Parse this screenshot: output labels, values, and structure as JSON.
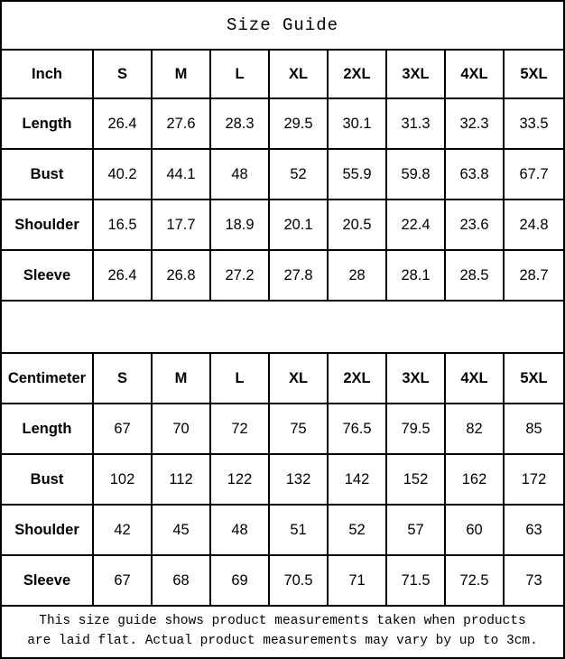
{
  "title": "Size Guide",
  "colors": {
    "border": "#000000",
    "text": "#000000",
    "background": "#ffffff"
  },
  "tables": [
    {
      "unit": "Inch",
      "sizes": [
        "S",
        "M",
        "L",
        "XL",
        "2XL",
        "3XL",
        "4XL",
        "5XL"
      ],
      "rows": [
        {
          "label": "Length",
          "values": [
            "26.4",
            "27.6",
            "28.3",
            "29.5",
            "30.1",
            "31.3",
            "32.3",
            "33.5"
          ]
        },
        {
          "label": "Bust",
          "values": [
            "40.2",
            "44.1",
            "48",
            "52",
            "55.9",
            "59.8",
            "63.8",
            "67.7"
          ]
        },
        {
          "label": "Shoulder",
          "values": [
            "16.5",
            "17.7",
            "18.9",
            "20.1",
            "20.5",
            "22.4",
            "23.6",
            "24.8"
          ]
        },
        {
          "label": "Sleeve",
          "values": [
            "26.4",
            "26.8",
            "27.2",
            "27.8",
            "28",
            "28.1",
            "28.5",
            "28.7"
          ]
        }
      ]
    },
    {
      "unit": "Centimeter",
      "sizes": [
        "S",
        "M",
        "L",
        "XL",
        "2XL",
        "3XL",
        "4XL",
        "5XL"
      ],
      "rows": [
        {
          "label": "Length",
          "values": [
            "67",
            "70",
            "72",
            "75",
            "76.5",
            "79.5",
            "82",
            "85"
          ]
        },
        {
          "label": "Bust",
          "values": [
            "102",
            "112",
            "122",
            "132",
            "142",
            "152",
            "162",
            "172"
          ]
        },
        {
          "label": "Shoulder",
          "values": [
            "42",
            "45",
            "48",
            "51",
            "52",
            "57",
            "60",
            "63"
          ]
        },
        {
          "label": "Sleeve",
          "values": [
            "67",
            "68",
            "69",
            "70.5",
            "71",
            "71.5",
            "72.5",
            "73"
          ]
        }
      ]
    }
  ],
  "footer": {
    "line1": "This size guide shows product measurements taken when products",
    "line2": "are laid flat. Actual product measurements may vary by up to 3cm."
  }
}
